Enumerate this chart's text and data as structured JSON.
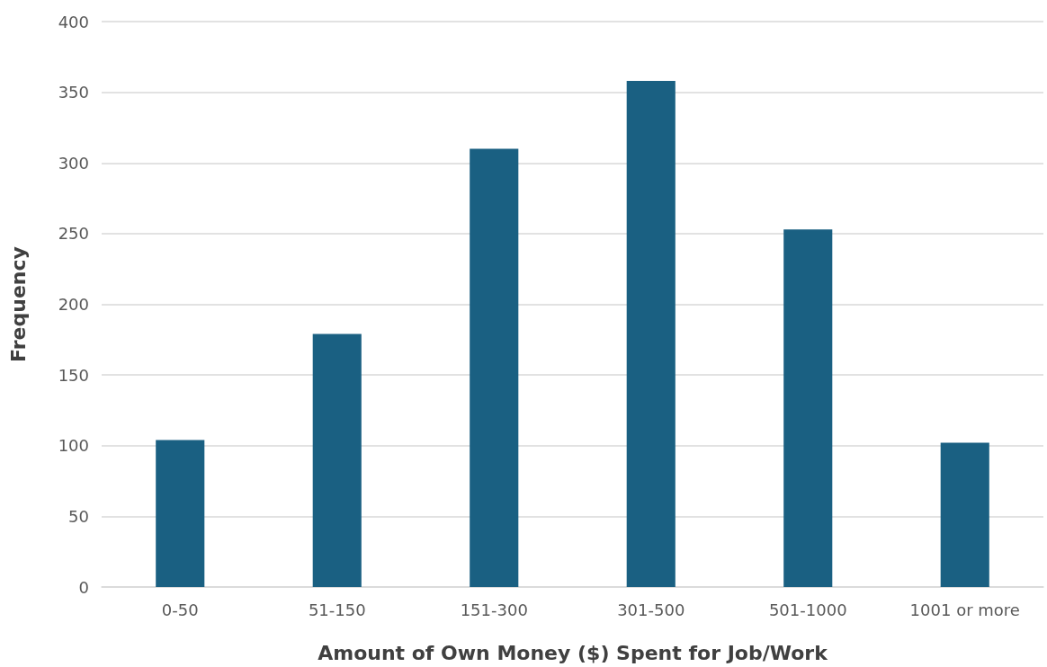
{
  "chart_data": {
    "type": "bar",
    "xlabel": "Amount of Own Money ($) Spent for Job/Work",
    "ylabel": "Frequency",
    "categories": [
      "0-50",
      "51-150",
      "151-300",
      "301-500",
      "501-1000",
      "1001 or more"
    ],
    "values": [
      104,
      179,
      310,
      358,
      253,
      102
    ],
    "color": "#1a6082",
    "ylim": [
      0,
      400
    ],
    "yticks": [
      0,
      50,
      100,
      150,
      200,
      250,
      300,
      350,
      400
    ],
    "grid": "y"
  }
}
